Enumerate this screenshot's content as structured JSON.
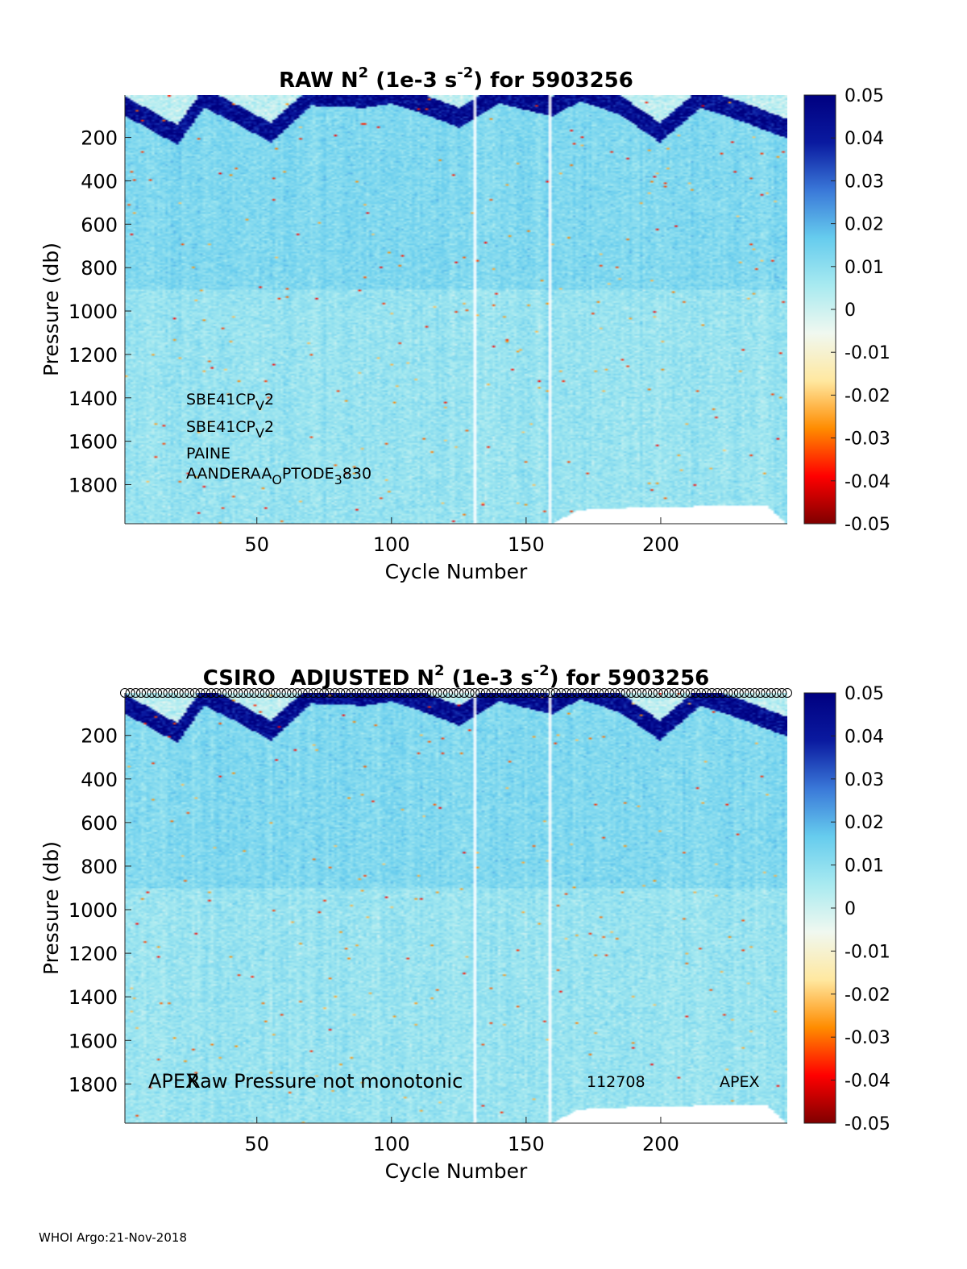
{
  "footer": "WHOI Argo:21-Nov-2018",
  "colormap": {
    "name": "jet-diverging",
    "stops": [
      "#7f0000",
      "#ff0000",
      "#ff8c00",
      "#ffe8a0",
      "#f0f8f0",
      "#a8eaf0",
      "#66ccee",
      "#3a78d8",
      "#0a1aa0",
      "#000080"
    ]
  },
  "chart_data": [
    {
      "type": "heatmap",
      "title_parts": [
        "RAW N",
        "2",
        " (1e-3 s",
        "-2",
        ") for 5903256"
      ],
      "xlabel": "Cycle Number",
      "ylabel": "Pressure (db)",
      "xlim": [
        1,
        247
      ],
      "ylim": [
        1980,
        5
      ],
      "y_reversed": true,
      "xticks": [
        50,
        100,
        150,
        200
      ],
      "yticks": [
        200,
        400,
        600,
        800,
        1000,
        1200,
        1400,
        1600,
        1800
      ],
      "colorbar": {
        "clim": [
          -0.05,
          0.05
        ],
        "ticks": [
          "0.05",
          "0.04",
          "0.03",
          "0.02",
          "0.01",
          "0",
          "-0.01",
          "-0.02",
          "-0.03",
          "-0.04",
          "-0.05"
        ]
      },
      "gap_cycles": [
        131,
        159
      ],
      "max_profile_depth": {
        "cycles": [
          1,
          160,
          170,
          190,
          200,
          220,
          240,
          247
        ],
        "pressure": [
          1980,
          1980,
          1920,
          1910,
          1910,
          1900,
          1900,
          1980
        ]
      },
      "surface_max_layer_depth": {
        "cycles": [
          1,
          20,
          30,
          40,
          55,
          70,
          90,
          100,
          110,
          125,
          140,
          160,
          170,
          185,
          200,
          215,
          230,
          247
        ],
        "pressure": [
          100,
          230,
          60,
          120,
          220,
          50,
          60,
          40,
          80,
          150,
          40,
          100,
          30,
          90,
          220,
          60,
          120,
          200
        ]
      },
      "annotations": [
        {
          "parts": [
            "SBE41CP",
            "V",
            "2"
          ]
        },
        {
          "parts": [
            "SBE41CP",
            "V",
            "2"
          ]
        },
        {
          "parts": [
            "PAINE"
          ]
        },
        {
          "parts": [
            "AANDERAA",
            "O",
            "PTODE",
            "3",
            "830"
          ]
        }
      ]
    },
    {
      "type": "heatmap",
      "title_parts": [
        "CSIRO  ADJUSTED N",
        "2",
        " (1e-3 s",
        "-2",
        ") for 5903256"
      ],
      "xlabel": "Cycle Number",
      "ylabel": "Pressure (db)",
      "xlim": [
        1,
        247
      ],
      "ylim": [
        1980,
        5
      ],
      "y_reversed": true,
      "xticks": [
        50,
        100,
        150,
        200
      ],
      "yticks": [
        200,
        400,
        600,
        800,
        1000,
        1200,
        1400,
        1600,
        1800
      ],
      "colorbar": {
        "clim": [
          -0.05,
          0.05
        ],
        "ticks": [
          "0.05",
          "0.04",
          "0.03",
          "0.02",
          "0.01",
          "0",
          "-0.01",
          "-0.02",
          "-0.03",
          "-0.04",
          "-0.05"
        ]
      },
      "gap_cycles": [
        131,
        159
      ],
      "max_profile_depth": {
        "cycles": [
          1,
          160,
          170,
          190,
          200,
          220,
          240,
          247
        ],
        "pressure": [
          1980,
          1980,
          1920,
          1910,
          1910,
          1900,
          1900,
          1980
        ]
      },
      "surface_max_layer_depth": {
        "cycles": [
          1,
          20,
          30,
          40,
          55,
          70,
          90,
          100,
          110,
          125,
          140,
          160,
          170,
          185,
          200,
          215,
          230,
          247
        ],
        "pressure": [
          100,
          230,
          60,
          120,
          220,
          50,
          60,
          40,
          80,
          150,
          40,
          100,
          30,
          90,
          220,
          60,
          120,
          200
        ]
      },
      "flag_markers": {
        "symbol": "o",
        "pressure_row": "above-axis",
        "cycle_range": [
          1,
          247
        ]
      },
      "annotations": [
        {
          "parts": [
            "APEX"
          ]
        },
        {
          "parts": [
            "Raw Pressure not monotonic"
          ]
        },
        {
          "parts": [
            "112708"
          ]
        },
        {
          "parts": [
            "APEX"
          ]
        }
      ]
    }
  ]
}
